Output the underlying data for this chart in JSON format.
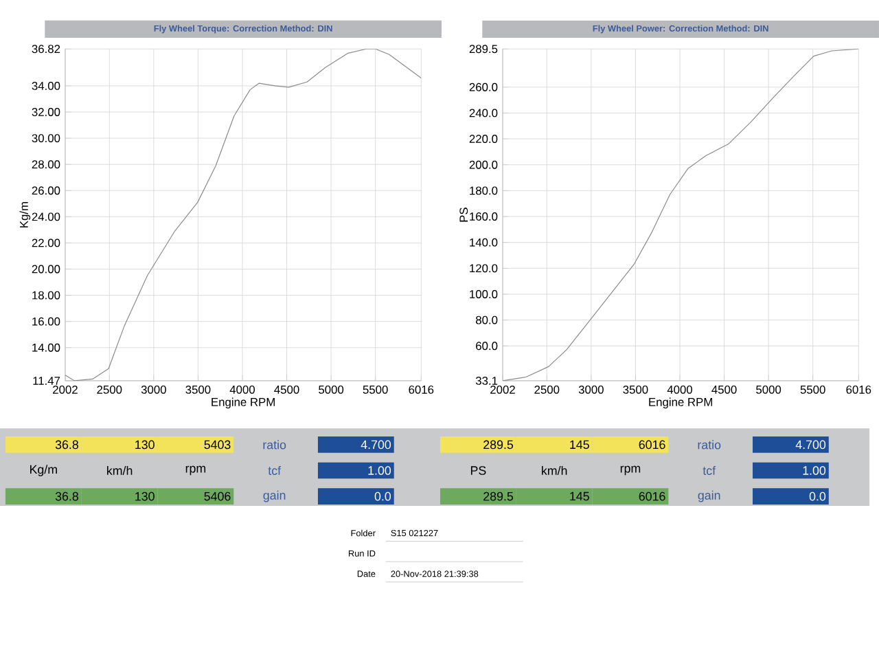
{
  "chart_data": [
    {
      "type": "line",
      "title": "Fly Wheel Torque:    Correction Method: DIN",
      "xlabel": "Engine RPM",
      "ylabel": "Kg/m",
      "xlim": [
        2002,
        6016
      ],
      "xticks": [
        2002,
        2500,
        3000,
        3500,
        4000,
        4500,
        5000,
        5500,
        6016
      ],
      "ylim": [
        11.47,
        36.82
      ],
      "yticks": [
        11.47,
        {
          "value": 14,
          "label": "14.00"
        },
        {
          "value": 16,
          "label": "16.00"
        },
        {
          "value": 18,
          "label": "18.00"
        },
        {
          "value": 20,
          "label": "20.00"
        },
        {
          "value": 22,
          "label": "22.00"
        },
        {
          "value": 24,
          "label": "24.00"
        },
        {
          "value": 26,
          "label": "26.00"
        },
        {
          "value": 28,
          "label": "28.00"
        },
        {
          "value": 30,
          "label": "30.00"
        },
        {
          "value": 32,
          "label": "32.00"
        },
        {
          "value": 34,
          "label": "34.00"
        },
        36.82
      ],
      "grid": true,
      "series": [
        {
          "color": "#8a8a8a",
          "x": [
            2002,
            2105,
            2311,
            2491,
            2671,
            2928,
            3237,
            3495,
            3700,
            3906,
            4086,
            4189,
            4369,
            4523,
            4729,
            4935,
            5192,
            5398,
            5501,
            5655,
            6016
          ],
          "values": [
            11.9,
            11.47,
            11.6,
            12.4,
            15.7,
            19.5,
            22.9,
            25.1,
            27.9,
            31.7,
            33.7,
            34.2,
            34.0,
            33.9,
            34.3,
            35.4,
            36.5,
            36.82,
            36.82,
            36.4,
            34.6
          ]
        }
      ],
      "annotations": [
        "36.8",
        "130",
        "5403",
        "ratio",
        "4.700",
        "Kg/m",
        "km/h",
        "rpm",
        "tcf",
        "1.00",
        "36.8",
        "130",
        "5406",
        "gain",
        "0.0",
        "Folder",
        "S15 021227",
        "Date",
        "20-Nov-2018  21:39:38",
        "Run ID"
      ]
    },
    {
      "type": "line",
      "title": "Fly Wheel Power:    Correction Method: DIN",
      "xlabel": "Engine RPM",
      "ylabel": "PS",
      "xlim": [
        2002,
        6016
      ],
      "xticks": [
        2002,
        2500,
        3000,
        3500,
        4000,
        4500,
        5000,
        5500,
        6016
      ],
      "ylim": [
        33.1,
        289.5
      ],
      "yticks": [
        33.1,
        {
          "value": 60,
          "label": "60.0"
        },
        {
          "value": 80,
          "label": "80.0"
        },
        {
          "value": 100,
          "label": "100.0"
        },
        {
          "value": 120,
          "label": "120.0"
        },
        {
          "value": 140,
          "label": "140.0"
        },
        {
          "value": 160,
          "label": "160.0"
        },
        {
          "value": 180,
          "label": "180.0"
        },
        {
          "value": 200,
          "label": "200.0"
        },
        {
          "value": 220,
          "label": "220.0"
        },
        {
          "value": 240,
          "label": "240.0"
        },
        {
          "value": 260,
          "label": "260.0"
        },
        289.5
      ],
      "grid": true,
      "series": [
        {
          "color": "#8a8a8a",
          "x": [
            2002,
            2266,
            2519,
            2722,
            2975,
            3229,
            3482,
            3685,
            3888,
            4091,
            4293,
            4547,
            4800,
            5054,
            5307,
            5510,
            5712,
            6016
          ],
          "values": [
            33.1,
            36,
            44,
            57,
            79,
            101,
            123,
            148,
            177,
            197,
            207,
            216,
            233,
            252,
            270,
            284,
            288,
            289.5
          ]
        }
      ],
      "annotations": [
        "289.5",
        "145",
        "6016",
        "ratio",
        "4.700",
        "PS",
        "km/h",
        "rpm",
        "tcf",
        "1.00",
        "289.5",
        "145",
        "6016",
        "gain",
        "0.0"
      ]
    }
  ]
}
